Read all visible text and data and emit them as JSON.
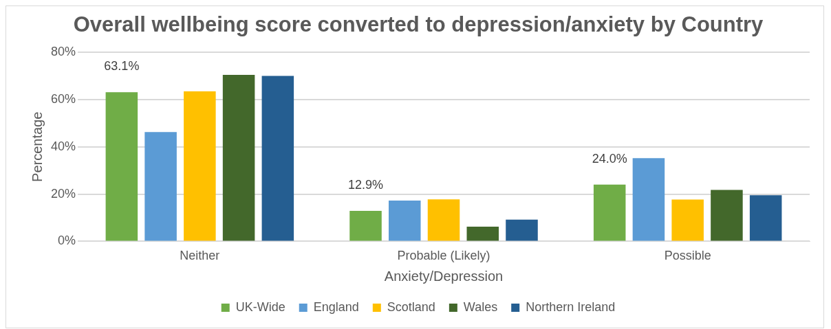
{
  "chart_data": {
    "type": "bar",
    "title": "Overall wellbeing score converted to depression/anxiety by Country",
    "xlabel": "Anxiety/Depression",
    "ylabel": "Percentage",
    "categories": [
      "Neither",
      "Probable (Likely)",
      "Possible"
    ],
    "series": [
      {
        "name": "UK-Wide",
        "color": "#70ad47",
        "values": [
          63.1,
          12.9,
          24.0
        ],
        "value_labels": [
          "63.1%",
          "12.9%",
          "24.0%"
        ]
      },
      {
        "name": "England",
        "color": "#5b9bd5",
        "values": [
          46.3,
          17.3,
          35.2
        ]
      },
      {
        "name": "Scotland",
        "color": "#ffc000",
        "values": [
          63.5,
          17.8,
          17.7
        ]
      },
      {
        "name": "Wales",
        "color": "#43682b",
        "values": [
          70.5,
          6.2,
          21.8
        ]
      },
      {
        "name": "Northern Ireland",
        "color": "#255e91",
        "values": [
          70.0,
          9.2,
          19.5
        ]
      }
    ],
    "ylim": [
      0,
      80
    ],
    "yticks": [
      {
        "value": 0,
        "label": "0%"
      },
      {
        "value": 20,
        "label": "20%"
      },
      {
        "value": 40,
        "label": "40%"
      },
      {
        "value": 60,
        "label": "60%"
      },
      {
        "value": 80,
        "label": "80%"
      }
    ],
    "grid": "y",
    "legend": "bottom"
  }
}
